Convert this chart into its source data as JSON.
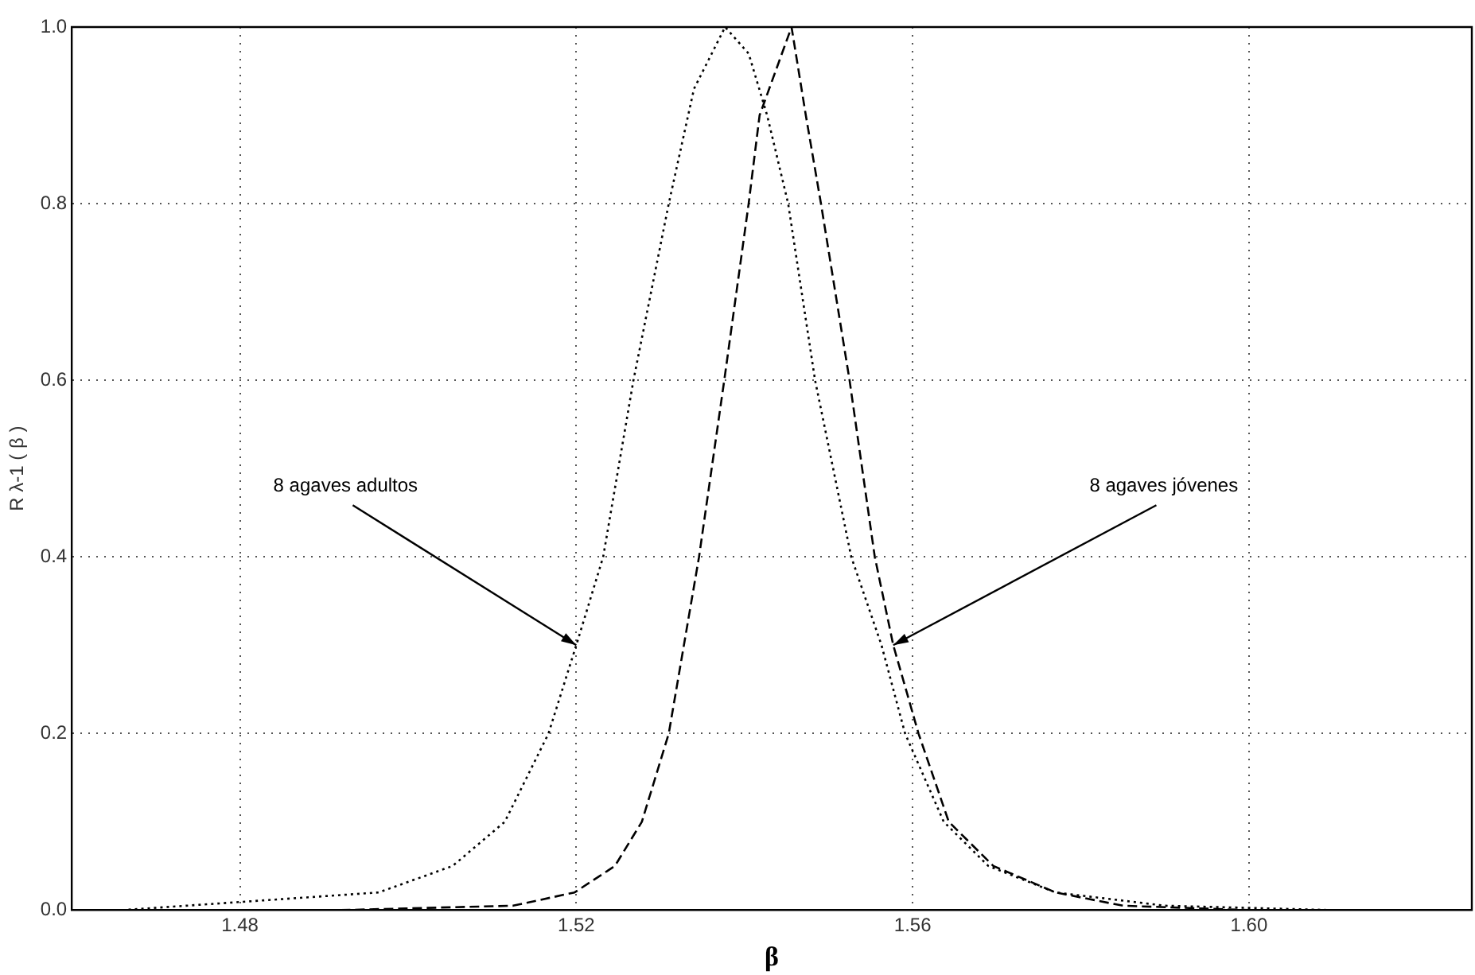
{
  "chart_data": {
    "type": "line",
    "ylabel": "R λ-1 ( β )",
    "xlabel": "β",
    "xlim": [
      1.46,
      1.6265
    ],
    "ylim": [
      0,
      1
    ],
    "xticks": [
      1.48,
      1.52,
      1.56,
      {
        "value": 1.6,
        "label": "1.60"
      }
    ],
    "yticks": [
      {
        "value": 0,
        "label": "0.0"
      },
      {
        "value": 0.2,
        "label": "0.2"
      },
      {
        "value": 0.4,
        "label": "0.4"
      },
      {
        "value": 0.6,
        "label": "0.6"
      },
      {
        "value": 0.8,
        "label": "0.8"
      },
      {
        "value": 1,
        "label": "1.0"
      }
    ],
    "grid": true,
    "legend": false,
    "marker": "none",
    "series": [
      {
        "color": "#000000",
        "line_style": "dotted",
        "x": [
          1.466,
          1.4965,
          1.5053,
          1.5115,
          1.5167,
          1.52,
          1.5232,
          1.5268,
          1.531,
          1.534,
          1.5377,
          1.5405,
          1.5427,
          1.5452,
          1.5484,
          1.5527,
          1.5563,
          1.5591,
          1.5637,
          1.569,
          1.577,
          1.59,
          1.61
        ],
        "values": [
          0,
          0.02,
          0.05,
          0.1,
          0.2,
          0.3,
          0.4,
          0.6,
          0.8,
          0.93,
          1,
          0.97,
          0.9,
          0.8,
          0.6,
          0.4,
          0.3,
          0.2,
          0.1,
          0.05,
          0.02,
          0.005,
          0
        ]
      },
      {
        "color": "#000000",
        "line_style": "dashed",
        "x": [
          1.492,
          1.5125,
          1.5198,
          1.5246,
          1.5278,
          1.531,
          1.5346,
          1.5376,
          1.5405,
          1.5418,
          1.5456,
          1.5473,
          1.5491,
          1.5525,
          1.5555,
          1.5577,
          1.5607,
          1.5643,
          1.5696,
          1.577,
          1.585,
          1.6
        ],
        "values": [
          0,
          0.005,
          0.02,
          0.05,
          0.1,
          0.2,
          0.4,
          0.6,
          0.8,
          0.9,
          1,
          0.9,
          0.8,
          0.6,
          0.4,
          0.3,
          0.2,
          0.1,
          0.05,
          0.02,
          0.005,
          0
        ]
      }
    ],
    "annotations": [
      {
        "text": "8 agaves adultos",
        "x": 1.52,
        "y": 0.3
      },
      {
        "text": "8 agaves jóvenes",
        "x": 1.5577,
        "y": 0.3
      }
    ]
  }
}
